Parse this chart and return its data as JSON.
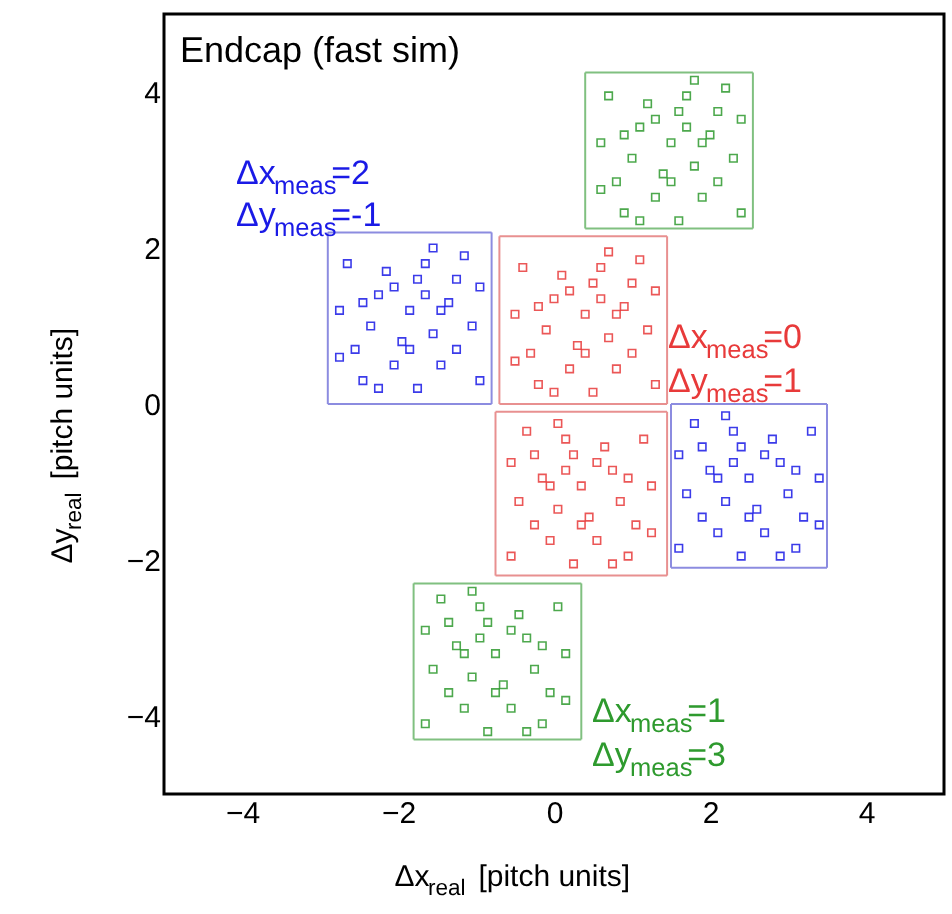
{
  "chart_data": {
    "type": "scatter",
    "title": "Endcap (fast sim)",
    "xlabel": "Δx$_{real}$ [pitch units]",
    "ylabel": "Δy$_{real}$ [pitch units]",
    "xlim": [
      -5,
      5
    ],
    "ylim": [
      -5,
      5
    ],
    "xticks": [
      -4,
      -2,
      0,
      2,
      4
    ],
    "yticks": [
      -4,
      -2,
      0,
      2,
      4
    ],
    "marker": "square",
    "series": [
      {
        "color": "#1a1ae6",
        "x": [
          -1.85,
          -1.55,
          -2.25,
          -1.25,
          -2.55,
          -1.65,
          -2.05,
          -1.05,
          -2.75,
          -1.75,
          -1.35,
          -2.35,
          -1.45,
          -2.15,
          -1.15,
          -2.65,
          -0.95,
          -2.45,
          -1.65,
          -1.95,
          -1.55,
          -2.25,
          -1.25,
          -2.05,
          -1.85,
          -0.95,
          -2.75,
          -1.45,
          -2.45,
          -1.75,
          2.5,
          2.2,
          2.9,
          1.9,
          3.2,
          2.3,
          2.7,
          1.7,
          3.4,
          2.4,
          2.0,
          3.0,
          2.1,
          2.8,
          1.8,
          3.3,
          1.6,
          3.1,
          2.3,
          2.6,
          2.2,
          2.9,
          1.9,
          2.7,
          2.5,
          1.6,
          3.4,
          2.1,
          3.1,
          2.4
        ],
        "values": [
          1.2,
          0.9,
          1.4,
          1.6,
          0.7,
          1.8,
          0.5,
          1.0,
          1.2,
          0.2,
          1.3,
          1.0,
          0.5,
          1.7,
          1.9,
          1.8,
          0.3,
          0.3,
          1.4,
          0.8,
          2.0,
          0.2,
          0.7,
          1.5,
          0.7,
          1.5,
          0.6,
          1.2,
          1.3,
          1.6,
          -0.95,
          -1.25,
          -0.75,
          -0.55,
          -1.45,
          -0.35,
          -1.65,
          -1.15,
          -0.95,
          -1.95,
          -0.85,
          -1.15,
          -1.65,
          -0.45,
          -0.25,
          -0.35,
          -1.85,
          -1.85,
          -0.75,
          -1.35,
          -0.15,
          -1.95,
          -1.45,
          -0.65,
          -1.45,
          -0.65,
          -1.55,
          -0.95,
          -0.85,
          -0.55
        ]
      },
      {
        "color": "#e83a3a",
        "x": [
          0.4,
          0.7,
          0.0,
          1.0,
          -0.3,
          0.6,
          0.2,
          1.2,
          -0.5,
          0.5,
          0.9,
          -0.1,
          0.8,
          0.1,
          1.1,
          -0.4,
          1.3,
          -0.2,
          0.6,
          0.3,
          0.7,
          0.0,
          1.0,
          0.2,
          0.4,
          1.3,
          -0.5,
          0.8,
          -0.2,
          0.5,
          0.35,
          0.05,
          0.75,
          -0.25,
          1.05,
          0.15,
          0.55,
          -0.45,
          1.25,
          0.25,
          -0.15,
          0.85,
          -0.05,
          0.65,
          -0.35,
          1.15,
          -0.55,
          0.95,
          0.15,
          0.45,
          0.05,
          0.75,
          -0.25,
          0.55,
          0.35,
          -0.55,
          1.25,
          -0.05,
          0.95,
          0.25
        ],
        "values": [
          1.15,
          0.85,
          1.35,
          1.55,
          0.65,
          1.75,
          0.45,
          0.95,
          1.15,
          0.15,
          1.25,
          0.95,
          0.45,
          1.65,
          1.85,
          1.75,
          0.25,
          0.25,
          1.35,
          0.75,
          1.95,
          0.15,
          0.65,
          1.45,
          0.65,
          1.45,
          0.55,
          1.15,
          1.25,
          1.55,
          -1.05,
          -1.35,
          -0.85,
          -0.65,
          -1.55,
          -0.45,
          -1.75,
          -1.25,
          -1.05,
          -2.05,
          -0.95,
          -1.25,
          -1.75,
          -0.55,
          -0.35,
          -0.45,
          -1.95,
          -1.95,
          -0.85,
          -1.45,
          -0.25,
          -2.05,
          -1.55,
          -0.75,
          -1.55,
          -0.75,
          -1.65,
          -1.05,
          -0.95,
          -0.65
        ]
      },
      {
        "color": "#2e9a2e",
        "x": [
          1.5,
          1.8,
          1.1,
          2.1,
          0.8,
          1.7,
          1.3,
          2.3,
          0.6,
          1.6,
          2.0,
          1.0,
          1.9,
          1.2,
          2.2,
          0.7,
          2.4,
          0.9,
          1.7,
          1.4,
          1.8,
          1.1,
          2.1,
          1.3,
          1.5,
          2.4,
          0.6,
          1.9,
          0.9,
          1.6,
          -0.75,
          -1.05,
          -0.35,
          -1.35,
          -0.05,
          -0.95,
          -0.55,
          -1.55,
          0.15,
          -0.85,
          -1.25,
          -0.25,
          -1.15,
          -0.45,
          -1.45,
          0.05,
          -1.65,
          -0.15,
          -0.95,
          -0.65,
          -1.05,
          -0.35,
          -1.35,
          -0.55,
          -0.75,
          -1.65,
          0.15,
          -1.15,
          -0.15,
          -0.85
        ],
        "values": [
          3.35,
          3.05,
          3.55,
          3.75,
          2.85,
          3.95,
          2.65,
          3.15,
          3.35,
          2.35,
          3.45,
          3.15,
          2.65,
          3.85,
          4.05,
          3.95,
          2.45,
          2.45,
          3.55,
          2.95,
          4.15,
          2.35,
          2.85,
          3.65,
          2.85,
          3.65,
          2.75,
          3.35,
          3.45,
          3.75,
          -3.2,
          -3.5,
          -3.0,
          -2.8,
          -3.7,
          -2.6,
          -3.9,
          -3.4,
          -3.2,
          -4.2,
          -3.1,
          -3.4,
          -3.9,
          -2.7,
          -2.5,
          -2.6,
          -4.1,
          -4.1,
          -3.0,
          -3.6,
          -2.4,
          -4.2,
          -3.7,
          -2.9,
          -3.7,
          -2.9,
          -3.8,
          -3.2,
          -3.1,
          -2.8
        ]
      },
      {
        "type": "line",
        "marker": "none",
        "color": "#8c8ce0",
        "x": [
          -2.9,
          -0.8
        ],
        "values": [
          0.0,
          0.0
        ]
      },
      {
        "type": "line",
        "marker": "none",
        "color": "#8c8ce0",
        "x": [
          -0.8,
          -0.8
        ],
        "values": [
          0.0,
          2.2
        ]
      },
      {
        "type": "line",
        "marker": "none",
        "color": "#8c8ce0",
        "x": [
          -0.8,
          -2.9
        ],
        "values": [
          2.2,
          2.2
        ]
      },
      {
        "type": "line",
        "marker": "none",
        "color": "#8c8ce0",
        "x": [
          -2.9,
          -2.9
        ],
        "values": [
          2.2,
          0.0
        ]
      },
      {
        "type": "line",
        "marker": "none",
        "color": "#8c8ce0",
        "x": [
          1.5,
          3.5
        ],
        "values": [
          -2.1,
          -2.1
        ]
      },
      {
        "type": "line",
        "marker": "none",
        "color": "#8c8ce0",
        "x": [
          3.5,
          3.5
        ],
        "values": [
          -2.1,
          0.0
        ]
      },
      {
        "type": "line",
        "marker": "none",
        "color": "#8c8ce0",
        "x": [
          3.5,
          1.5
        ],
        "values": [
          0.0,
          0.0
        ]
      },
      {
        "type": "line",
        "marker": "none",
        "color": "#8c8ce0",
        "x": [
          1.5,
          1.5
        ],
        "values": [
          0.0,
          -2.1
        ]
      },
      {
        "type": "line",
        "marker": "none",
        "color": "#e89090",
        "x": [
          -0.7,
          1.45
        ],
        "values": [
          0.0,
          0.0
        ]
      },
      {
        "type": "line",
        "marker": "none",
        "color": "#e89090",
        "x": [
          1.45,
          1.45
        ],
        "values": [
          0.0,
          2.15
        ]
      },
      {
        "type": "line",
        "marker": "none",
        "color": "#e89090",
        "x": [
          1.45,
          -0.7
        ],
        "values": [
          2.15,
          2.15
        ]
      },
      {
        "type": "line",
        "marker": "none",
        "color": "#e89090",
        "x": [
          -0.7,
          -0.7
        ],
        "values": [
          2.15,
          0.0
        ]
      },
      {
        "type": "line",
        "marker": "none",
        "color": "#e89090",
        "x": [
          -0.75,
          1.45
        ],
        "values": [
          -2.2,
          -2.2
        ]
      },
      {
        "type": "line",
        "marker": "none",
        "color": "#e89090",
        "x": [
          1.45,
          1.45
        ],
        "values": [
          -2.2,
          -0.1
        ]
      },
      {
        "type": "line",
        "marker": "none",
        "color": "#e89090",
        "x": [
          1.45,
          -0.75
        ],
        "values": [
          -0.1,
          -0.1
        ]
      },
      {
        "type": "line",
        "marker": "none",
        "color": "#e89090",
        "x": [
          -0.75,
          -0.75
        ],
        "values": [
          -0.1,
          -2.2
        ]
      },
      {
        "type": "line",
        "marker": "none",
        "color": "#80c080",
        "x": [
          0.4,
          2.55
        ],
        "values": [
          2.25,
          2.25
        ]
      },
      {
        "type": "line",
        "marker": "none",
        "color": "#80c080",
        "x": [
          2.55,
          2.55
        ],
        "values": [
          2.25,
          4.25
        ]
      },
      {
        "type": "line",
        "marker": "none",
        "color": "#80c080",
        "x": [
          2.55,
          0.4
        ],
        "values": [
          4.25,
          4.25
        ]
      },
      {
        "type": "line",
        "marker": "none",
        "color": "#80c080",
        "x": [
          0.4,
          0.4
        ],
        "values": [
          4.25,
          2.25
        ]
      },
      {
        "type": "line",
        "marker": "none",
        "color": "#80c080",
        "x": [
          -1.8,
          0.35
        ],
        "values": [
          -4.3,
          -4.3
        ]
      },
      {
        "type": "line",
        "marker": "none",
        "color": "#80c080",
        "x": [
          0.35,
          0.35
        ],
        "values": [
          -4.3,
          -2.3
        ]
      },
      {
        "type": "line",
        "marker": "none",
        "color": "#80c080",
        "x": [
          0.35,
          -1.8
        ],
        "values": [
          -2.3,
          -2.3
        ]
      },
      {
        "type": "line",
        "marker": "none",
        "color": "#80c080",
        "x": [
          -1.8,
          -1.8
        ],
        "values": [
          -2.3,
          -4.3
        ]
      }
    ],
    "annotations": [
      "Δx$_{meas}$=2",
      "Δy$_{meas}$=-1",
      "Δx$_{meas}$=0",
      "Δy$_{meas}$=1",
      "Δx$_{meas}$=1",
      "Δy$_{meas}$=3"
    ]
  }
}
